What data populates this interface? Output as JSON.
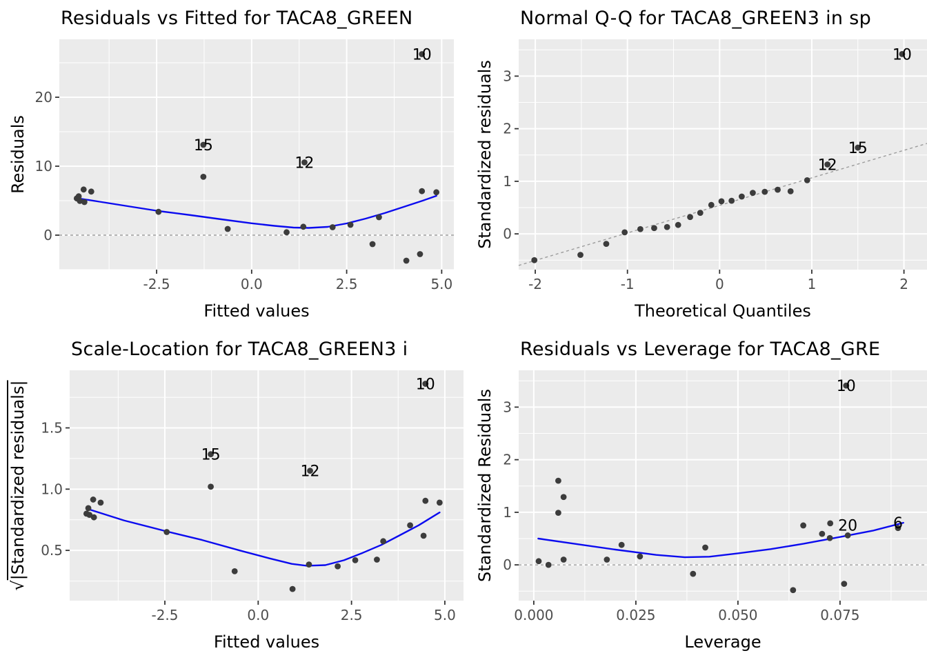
{
  "figure": {
    "background": "#FFFFFF",
    "panel_bg": "#EBEBEB",
    "grid_color": "#FFFFFF",
    "point_color": "#3C3C3C",
    "smooth_color": "#0B0BEF",
    "dash_color": "#9B9B9B",
    "tick_mark_color": "#333333",
    "tick_label_color": "#4D4D4D",
    "label_color": "#000000"
  },
  "chart_data": [
    {
      "type": "scatter",
      "title": "Residuals vs Fitted for TACA8_GREEN",
      "xlabel": "Fitted values",
      "ylabel": "Residuals",
      "xlim": [
        -5.06,
        5.32
      ],
      "ylim": [
        -5.0,
        28.4
      ],
      "grid": true,
      "legend": "none",
      "xticks": {
        "values": [
          -2.5,
          0.0,
          2.5,
          5.0
        ],
        "labels": [
          "-2.5",
          "0.0",
          "2.5",
          "5.0"
        ]
      },
      "yticks": {
        "values": [
          0,
          10,
          20
        ],
        "labels": [
          "0",
          "10",
          "20"
        ]
      },
      "hline": 0,
      "points": [
        [
          -4.6,
          5.33
        ],
        [
          -4.55,
          5.63
        ],
        [
          -4.52,
          4.96
        ],
        [
          -4.42,
          6.62
        ],
        [
          -4.4,
          4.8
        ],
        [
          -4.22,
          6.32
        ],
        [
          -2.45,
          3.38
        ],
        [
          -1.27,
          8.46
        ],
        [
          -0.63,
          0.9
        ],
        [
          0.92,
          0.42
        ],
        [
          1.36,
          1.22
        ],
        [
          2.13,
          1.15
        ],
        [
          2.6,
          1.5
        ],
        [
          3.18,
          -1.3
        ],
        [
          3.35,
          2.6
        ],
        [
          4.07,
          -3.7
        ],
        [
          4.43,
          -2.75
        ],
        [
          4.48,
          6.38
        ],
        [
          4.86,
          6.22
        ]
      ],
      "labels": [
        {
          "text": "15",
          "x": -1.27,
          "y": 13.1
        },
        {
          "text": "12",
          "x": 1.39,
          "y": 10.55
        },
        {
          "text": "10",
          "x": 4.48,
          "y": 26.25
        }
      ],
      "smooth": [
        [
          -4.58,
          5.35
        ],
        [
          -4.0,
          4.85
        ],
        [
          -3.2,
          4.15
        ],
        [
          -2.45,
          3.5
        ],
        [
          -1.6,
          2.9
        ],
        [
          -0.8,
          2.3
        ],
        [
          0.0,
          1.72
        ],
        [
          0.6,
          1.35
        ],
        [
          1.1,
          1.1
        ],
        [
          1.5,
          1.05
        ],
        [
          2.0,
          1.2
        ],
        [
          2.5,
          1.7
        ],
        [
          3.0,
          2.4
        ],
        [
          3.5,
          3.2
        ],
        [
          4.0,
          4.1
        ],
        [
          4.5,
          5.0
        ],
        [
          4.86,
          5.7
        ]
      ]
    },
    {
      "type": "scatter",
      "title": "Normal Q-Q for TACA8_GREEN3 in sp",
      "xlabel": "Theoretical Quantiles",
      "ylabel": "Standardized residuals",
      "xlim": [
        -2.18,
        2.25
      ],
      "ylim": [
        -0.68,
        3.7
      ],
      "grid": true,
      "legend": "none",
      "xticks": {
        "values": [
          -2,
          -1,
          0,
          1,
          2
        ],
        "labels": [
          "-2",
          "-1",
          "0",
          "1",
          "2"
        ]
      },
      "yticks": {
        "values": [
          0,
          1,
          2,
          3
        ],
        "labels": [
          "0",
          "1",
          "2",
          "3"
        ]
      },
      "qqline": [
        [
          -2.18,
          -0.6
        ],
        [
          2.25,
          1.72
        ]
      ],
      "points": [
        [
          -2.01,
          -0.5
        ],
        [
          -1.51,
          -0.4
        ],
        [
          -1.23,
          -0.19
        ],
        [
          -1.03,
          0.03
        ],
        [
          -0.86,
          0.09
        ],
        [
          -0.71,
          0.11
        ],
        [
          -0.57,
          0.13
        ],
        [
          -0.45,
          0.17
        ],
        [
          -0.32,
          0.32
        ],
        [
          -0.21,
          0.4
        ],
        [
          -0.09,
          0.55
        ],
        [
          0.02,
          0.62
        ],
        [
          0.13,
          0.63
        ],
        [
          0.24,
          0.71
        ],
        [
          0.36,
          0.78
        ],
        [
          0.49,
          0.8
        ],
        [
          0.63,
          0.84
        ],
        [
          0.77,
          0.81
        ],
        [
          0.95,
          1.02
        ]
      ],
      "labels": [
        {
          "text": "12",
          "x": 1.17,
          "y": 1.32
        },
        {
          "text": "15",
          "x": 1.5,
          "y": 1.64
        },
        {
          "text": "10",
          "x": 1.98,
          "y": 3.42
        }
      ],
      "smooth": []
    },
    {
      "type": "scatter",
      "title": "Scale-Location for TACA8_GREEN3 i",
      "xlabel": "Fitted values",
      "ylabel_prefix": "√",
      "ylabel_main": "|Standardized residuals|",
      "xlim": [
        -5.05,
        5.5
      ],
      "ylim": [
        0.09,
        1.97
      ],
      "grid": true,
      "legend": "none",
      "xticks": {
        "values": [
          -2.5,
          0.0,
          2.5,
          5.0
        ],
        "labels": [
          "-2.5",
          "0.0",
          "2.5",
          "5.0"
        ]
      },
      "yticks": {
        "values": [
          0.5,
          1.0,
          1.5
        ],
        "labels": [
          "0.5",
          "1.0",
          "1.5"
        ]
      },
      "points": [
        [
          -4.6,
          0.8
        ],
        [
          -4.55,
          0.845
        ],
        [
          -4.52,
          0.79
        ],
        [
          -4.42,
          0.915
        ],
        [
          -4.4,
          0.77
        ],
        [
          -4.22,
          0.89
        ],
        [
          -2.45,
          0.65
        ],
        [
          -1.27,
          1.02
        ],
        [
          -0.63,
          0.33
        ],
        [
          0.92,
          0.185
        ],
        [
          1.36,
          0.385
        ],
        [
          2.13,
          0.37
        ],
        [
          2.6,
          0.42
        ],
        [
          3.18,
          0.425
        ],
        [
          3.35,
          0.575
        ],
        [
          4.07,
          0.705
        ],
        [
          4.43,
          0.62
        ],
        [
          4.48,
          0.905
        ],
        [
          4.86,
          0.89
        ]
      ],
      "labels": [
        {
          "text": "15",
          "x": -1.27,
          "y": 1.285
        },
        {
          "text": "12",
          "x": 1.39,
          "y": 1.15
        },
        {
          "text": "10",
          "x": 4.48,
          "y": 1.86
        }
      ],
      "smooth": [
        [
          -4.58,
          0.84
        ],
        [
          -3.6,
          0.745
        ],
        [
          -2.45,
          0.655
        ],
        [
          -1.5,
          0.585
        ],
        [
          -0.5,
          0.5
        ],
        [
          0.3,
          0.435
        ],
        [
          0.9,
          0.39
        ],
        [
          1.3,
          0.375
        ],
        [
          1.8,
          0.38
        ],
        [
          2.3,
          0.42
        ],
        [
          2.8,
          0.48
        ],
        [
          3.3,
          0.545
        ],
        [
          3.8,
          0.625
        ],
        [
          4.3,
          0.705
        ],
        [
          4.86,
          0.81
        ]
      ]
    },
    {
      "type": "scatter",
      "title": "Residuals vs Leverage for TACA8_GRE",
      "xlabel": "Leverage",
      "ylabel": "Standardized Residuals",
      "xlim": [
        -0.0037,
        0.0963
      ],
      "ylim": [
        -0.68,
        3.7
      ],
      "grid": true,
      "legend": "none",
      "xticks": {
        "values": [
          0.0,
          0.025,
          0.05,
          0.075
        ],
        "labels": [
          "0.000",
          "0.025",
          "0.050",
          "0.075"
        ]
      },
      "yticks": {
        "values": [
          0,
          1,
          2,
          3
        ],
        "labels": [
          "0",
          "1",
          "2",
          "3"
        ]
      },
      "hline": 0,
      "points": [
        [
          0.0012,
          0.07
        ],
        [
          0.0036,
          0.0
        ],
        [
          0.006,
          1.6
        ],
        [
          0.0073,
          1.29
        ],
        [
          0.006,
          0.99
        ],
        [
          0.0073,
          0.1
        ],
        [
          0.0179,
          0.1
        ],
        [
          0.0215,
          0.38
        ],
        [
          0.026,
          0.16
        ],
        [
          0.039,
          -0.17
        ],
        [
          0.042,
          0.33
        ],
        [
          0.0635,
          -0.48
        ],
        [
          0.066,
          0.75
        ],
        [
          0.0706,
          0.59
        ],
        [
          0.0726,
          0.79
        ],
        [
          0.0725,
          0.51
        ],
        [
          0.076,
          -0.36
        ]
      ],
      "labels": [
        {
          "text": "10",
          "x": 0.0765,
          "y": 3.41
        },
        {
          "text": "20",
          "x": 0.0769,
          "y": 0.56,
          "dy": -15
        },
        {
          "text": "6",
          "x": 0.0892,
          "y": 0.7,
          "dy": -8
        }
      ],
      "smooth": [
        [
          0.0011,
          0.5
        ],
        [
          0.01,
          0.4
        ],
        [
          0.02,
          0.29
        ],
        [
          0.03,
          0.19
        ],
        [
          0.037,
          0.145
        ],
        [
          0.043,
          0.155
        ],
        [
          0.05,
          0.22
        ],
        [
          0.058,
          0.3
        ],
        [
          0.066,
          0.4
        ],
        [
          0.075,
          0.53
        ],
        [
          0.083,
          0.65
        ],
        [
          0.0905,
          0.8
        ]
      ]
    }
  ]
}
